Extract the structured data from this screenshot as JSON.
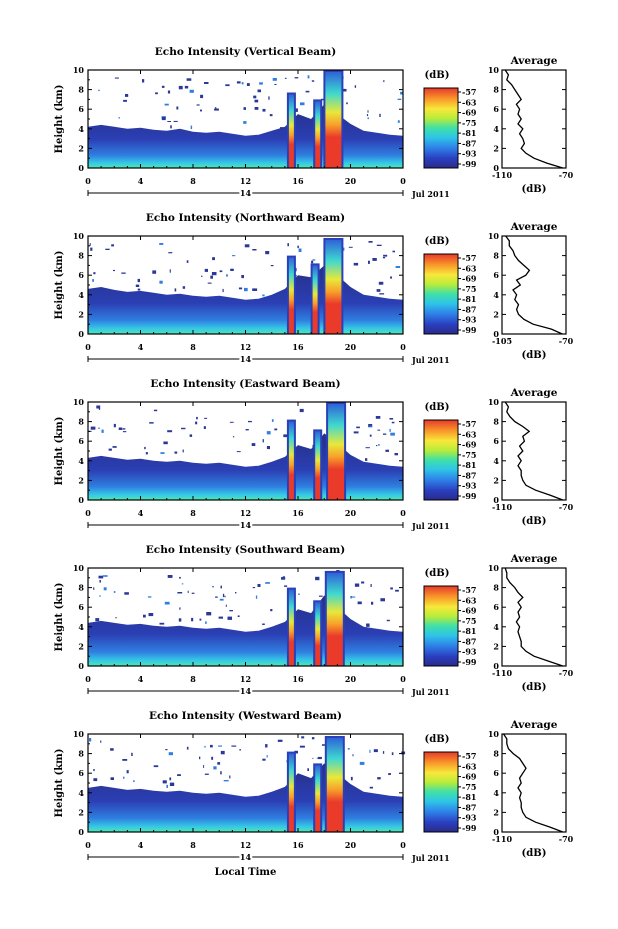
{
  "chart_data": [
    {
      "type": "heatmap",
      "title": "Echo Intensity (Vertical Beam)",
      "ylabel": "Height (km)",
      "xticks": [
        "0",
        "4",
        "8",
        "12",
        "16",
        "20",
        "0"
      ],
      "xlim": [
        0,
        24
      ],
      "ylim": [
        0,
        10
      ],
      "yticks": [
        "0",
        "2",
        "4",
        "6",
        "8",
        "10"
      ],
      "date_day": "14",
      "date_label": "Jul 2011",
      "colorbar": {
        "unit": "(dB)",
        "ticks": [
          "-57",
          "-63",
          "-69",
          "-75",
          "-81",
          "-87",
          "-93",
          "-99"
        ]
      },
      "echo_top_km": [
        [
          0.0,
          4.2
        ],
        [
          1.0,
          4.4
        ],
        [
          2.0,
          4.2
        ],
        [
          3.0,
          4.0
        ],
        [
          4.0,
          4.1
        ],
        [
          5.0,
          3.9
        ],
        [
          6.0,
          3.8
        ],
        [
          7.0,
          4.0
        ],
        [
          8.0,
          3.7
        ],
        [
          9.0,
          3.6
        ],
        [
          10.0,
          3.7
        ],
        [
          11.0,
          3.5
        ],
        [
          12.0,
          3.3
        ],
        [
          13.0,
          3.4
        ],
        [
          14.0,
          3.8
        ],
        [
          15.0,
          4.2
        ],
        [
          16.0,
          5.5
        ],
        [
          17.0,
          5.0
        ],
        [
          18.0,
          6.5
        ],
        [
          19.0,
          5.5
        ],
        [
          20.0,
          4.5
        ],
        [
          21.0,
          3.8
        ],
        [
          22.0,
          3.6
        ],
        [
          23.0,
          3.4
        ],
        [
          24.0,
          3.3
        ]
      ],
      "convective_cells": [
        {
          "time": 15.5,
          "top_km": 7.5
        },
        {
          "time": 17.5,
          "top_km": 6.8
        },
        {
          "time": 18.7,
          "top_km": 9.8
        }
      ],
      "profile": {
        "title": "Average",
        "xlabel": "(dB)",
        "xticks": [
          "-110",
          "-70"
        ],
        "xlim": [
          -110,
          -70
        ],
        "ylim": [
          0,
          10
        ],
        "yticks": [
          "0",
          "2",
          "4",
          "6",
          "8",
          "10"
        ],
        "height_km": [
          0,
          0.5,
          1,
          1.5,
          2,
          2.5,
          3,
          3.5,
          4,
          4.5,
          5,
          5.5,
          6,
          6.5,
          7,
          7.5,
          8,
          8.5,
          9,
          9.5,
          10
        ],
        "value_db": [
          -72,
          -82,
          -90,
          -95,
          -98,
          -96,
          -97,
          -99,
          -97,
          -100,
          -98,
          -100,
          -99,
          -101,
          -98,
          -100,
          -102,
          -104,
          -107,
          -106,
          -108
        ]
      }
    },
    {
      "type": "heatmap",
      "title": "Echo Intensity (Northward Beam)",
      "ylabel": "Height (km)",
      "xticks": [
        "0",
        "4",
        "8",
        "12",
        "16",
        "20",
        "0"
      ],
      "xlim": [
        0,
        24
      ],
      "ylim": [
        0,
        10
      ],
      "yticks": [
        "0",
        "2",
        "4",
        "6",
        "8",
        "10"
      ],
      "date_day": "14",
      "date_label": "Jul 2011",
      "colorbar": {
        "unit": "(dB)",
        "ticks": [
          "-57",
          "-63",
          "-69",
          "-75",
          "-81",
          "-87",
          "-93",
          "-99"
        ]
      },
      "echo_top_km": [
        [
          0.0,
          4.6
        ],
        [
          1.0,
          4.8
        ],
        [
          2.0,
          4.5
        ],
        [
          3.0,
          4.3
        ],
        [
          4.0,
          4.4
        ],
        [
          5.0,
          4.2
        ],
        [
          6.0,
          4.0
        ],
        [
          7.0,
          4.1
        ],
        [
          8.0,
          3.9
        ],
        [
          9.0,
          3.8
        ],
        [
          10.0,
          3.9
        ],
        [
          11.0,
          3.7
        ],
        [
          12.0,
          3.5
        ],
        [
          13.0,
          3.6
        ],
        [
          14.0,
          4.0
        ],
        [
          15.0,
          4.6
        ],
        [
          16.0,
          6.0
        ],
        [
          17.0,
          5.8
        ],
        [
          18.0,
          7.0
        ],
        [
          19.0,
          6.0
        ],
        [
          20.0,
          4.8
        ],
        [
          21.0,
          4.0
        ],
        [
          22.0,
          3.8
        ],
        [
          23.0,
          3.6
        ],
        [
          24.0,
          3.5
        ]
      ],
      "convective_cells": [
        {
          "time": 15.5,
          "top_km": 7.8
        },
        {
          "time": 17.3,
          "top_km": 7.0
        },
        {
          "time": 18.7,
          "top_km": 9.6
        }
      ],
      "profile": {
        "title": "Average",
        "xlabel": "(dB)",
        "xticks": [
          "-105",
          "-70"
        ],
        "xlim": [
          -105,
          -70
        ],
        "ylim": [
          0,
          10
        ],
        "yticks": [
          "0",
          "2",
          "4",
          "6",
          "8",
          "10"
        ],
        "height_km": [
          0,
          0.5,
          1,
          1.5,
          2,
          2.5,
          3,
          3.5,
          4,
          4.5,
          5,
          5.5,
          6,
          6.5,
          7,
          7.5,
          8,
          8.5,
          9,
          9.5,
          10
        ],
        "value_db": [
          -72,
          -78,
          -88,
          -93,
          -96,
          -97,
          -96,
          -98,
          -97,
          -99,
          -95,
          -97,
          -92,
          -90,
          -93,
          -96,
          -98,
          -99,
          -101,
          -101,
          -103
        ]
      }
    },
    {
      "type": "heatmap",
      "title": "Echo Intensity (Eastward Beam)",
      "ylabel": "Height (km)",
      "xticks": [
        "0",
        "4",
        "8",
        "12",
        "16",
        "20",
        "0"
      ],
      "xlim": [
        0,
        24
      ],
      "ylim": [
        0,
        10
      ],
      "yticks": [
        "0",
        "2",
        "4",
        "6",
        "8",
        "10"
      ],
      "date_day": "14",
      "date_label": "Jul 2011",
      "colorbar": {
        "unit": "(dB)",
        "ticks": [
          "-57",
          "-63",
          "-69",
          "-75",
          "-81",
          "-87",
          "-93",
          "-99"
        ]
      },
      "echo_top_km": [
        [
          0.0,
          4.3
        ],
        [
          1.0,
          4.5
        ],
        [
          2.0,
          4.3
        ],
        [
          3.0,
          4.1
        ],
        [
          4.0,
          4.2
        ],
        [
          5.0,
          4.0
        ],
        [
          6.0,
          3.9
        ],
        [
          7.0,
          4.0
        ],
        [
          8.0,
          3.8
        ],
        [
          9.0,
          3.7
        ],
        [
          10.0,
          3.8
        ],
        [
          11.0,
          3.6
        ],
        [
          12.0,
          3.4
        ],
        [
          13.0,
          3.5
        ],
        [
          14.0,
          3.9
        ],
        [
          15.0,
          4.4
        ],
        [
          16.0,
          5.6
        ],
        [
          17.0,
          5.2
        ],
        [
          18.0,
          6.8
        ],
        [
          19.0,
          5.8
        ],
        [
          20.0,
          4.6
        ],
        [
          21.0,
          3.9
        ],
        [
          22.0,
          3.7
        ],
        [
          23.0,
          3.5
        ],
        [
          24.0,
          3.4
        ]
      ],
      "convective_cells": [
        {
          "time": 15.5,
          "top_km": 8.0
        },
        {
          "time": 17.5,
          "top_km": 7.0
        },
        {
          "time": 18.9,
          "top_km": 9.8
        }
      ],
      "profile": {
        "title": "Average",
        "xlabel": "(dB)",
        "xticks": [
          "-110",
          "-70"
        ],
        "xlim": [
          -110,
          -70
        ],
        "ylim": [
          0,
          10
        ],
        "yticks": [
          "0",
          "2",
          "4",
          "6",
          "8",
          "10"
        ],
        "height_km": [
          0,
          0.5,
          1,
          1.5,
          2,
          2.5,
          3,
          3.5,
          4,
          4.5,
          5,
          5.5,
          6,
          6.5,
          7,
          7.5,
          8,
          8.5,
          9,
          9.5,
          10
        ],
        "value_db": [
          -72,
          -80,
          -89,
          -95,
          -97,
          -98,
          -98,
          -100,
          -98,
          -100,
          -97,
          -99,
          -96,
          -97,
          -93,
          -97,
          -102,
          -105,
          -107,
          -106,
          -108
        ]
      }
    },
    {
      "type": "heatmap",
      "title": "Echo Intensity (Southward Beam)",
      "ylabel": "Height (km)",
      "xticks": [
        "0",
        "4",
        "8",
        "12",
        "16",
        "20",
        "0"
      ],
      "xlim": [
        0,
        24
      ],
      "ylim": [
        0,
        10
      ],
      "yticks": [
        "0",
        "2",
        "4",
        "6",
        "8",
        "10"
      ],
      "date_day": "14",
      "date_label": "Jul 2011",
      "colorbar": {
        "unit": "(dB)",
        "ticks": [
          "-57",
          "-63",
          "-69",
          "-75",
          "-81",
          "-87",
          "-93",
          "-99"
        ]
      },
      "echo_top_km": [
        [
          0.0,
          4.4
        ],
        [
          1.0,
          4.6
        ],
        [
          2.0,
          4.4
        ],
        [
          3.0,
          4.2
        ],
        [
          4.0,
          4.3
        ],
        [
          5.0,
          4.1
        ],
        [
          6.0,
          4.0
        ],
        [
          7.0,
          4.1
        ],
        [
          8.0,
          3.9
        ],
        [
          9.0,
          3.8
        ],
        [
          10.0,
          3.9
        ],
        [
          11.0,
          3.7
        ],
        [
          12.0,
          3.5
        ],
        [
          13.0,
          3.6
        ],
        [
          14.0,
          4.0
        ],
        [
          15.0,
          4.5
        ],
        [
          16.0,
          5.8
        ],
        [
          17.0,
          5.4
        ],
        [
          18.0,
          7.2
        ],
        [
          19.0,
          6.0
        ],
        [
          20.0,
          4.8
        ],
        [
          21.0,
          4.0
        ],
        [
          22.0,
          3.8
        ],
        [
          23.0,
          3.6
        ],
        [
          24.0,
          3.5
        ]
      ],
      "convective_cells": [
        {
          "time": 15.5,
          "top_km": 7.8
        },
        {
          "time": 17.5,
          "top_km": 6.5
        },
        {
          "time": 18.8,
          "top_km": 9.5
        }
      ],
      "profile": {
        "title": "Average",
        "xlabel": "(dB)",
        "xticks": [
          "-110",
          "-70"
        ],
        "xlim": [
          -110,
          -70
        ],
        "ylim": [
          0,
          10
        ],
        "yticks": [
          "0",
          "2",
          "4",
          "6",
          "8",
          "10"
        ],
        "height_km": [
          0,
          0.5,
          1,
          1.5,
          2,
          2.5,
          3,
          3.5,
          4,
          4.5,
          5,
          5.5,
          6,
          6.5,
          7,
          7.5,
          8,
          8.5,
          9,
          9.5,
          10
        ],
        "value_db": [
          -72,
          -81,
          -90,
          -95,
          -98,
          -98,
          -99,
          -100,
          -99,
          -101,
          -99,
          -100,
          -98,
          -100,
          -97,
          -100,
          -102,
          -105,
          -107,
          -107,
          -108
        ]
      }
    },
    {
      "type": "heatmap",
      "title": "Echo Intensity (Westward Beam)",
      "ylabel": "Height (km)",
      "xlabel": "Local Time",
      "xticks": [
        "0",
        "4",
        "8",
        "12",
        "16",
        "20",
        "0"
      ],
      "xlim": [
        0,
        24
      ],
      "ylim": [
        0,
        10
      ],
      "yticks": [
        "0",
        "2",
        "4",
        "6",
        "8",
        "10"
      ],
      "date_day": "14",
      "date_label": "Jul 2011",
      "colorbar": {
        "unit": "(dB)",
        "ticks": [
          "-57",
          "-63",
          "-69",
          "-75",
          "-81",
          "-87",
          "-93",
          "-99"
        ]
      },
      "echo_top_km": [
        [
          0.0,
          4.5
        ],
        [
          1.0,
          4.7
        ],
        [
          2.0,
          4.5
        ],
        [
          3.0,
          4.3
        ],
        [
          4.0,
          4.4
        ],
        [
          5.0,
          4.2
        ],
        [
          6.0,
          4.1
        ],
        [
          7.0,
          4.2
        ],
        [
          8.0,
          4.0
        ],
        [
          9.0,
          3.9
        ],
        [
          10.0,
          4.0
        ],
        [
          11.0,
          3.8
        ],
        [
          12.0,
          3.6
        ],
        [
          13.0,
          3.7
        ],
        [
          14.0,
          4.1
        ],
        [
          15.0,
          4.6
        ],
        [
          16.0,
          6.0
        ],
        [
          17.0,
          5.5
        ],
        [
          18.0,
          7.0
        ],
        [
          19.0,
          6.0
        ],
        [
          20.0,
          4.9
        ],
        [
          21.0,
          4.1
        ],
        [
          22.0,
          3.9
        ],
        [
          23.0,
          3.7
        ],
        [
          24.0,
          3.6
        ]
      ],
      "convective_cells": [
        {
          "time": 15.5,
          "top_km": 8.0
        },
        {
          "time": 17.5,
          "top_km": 6.8
        },
        {
          "time": 18.8,
          "top_km": 9.6
        }
      ],
      "profile": {
        "title": "Average",
        "xlabel": "(dB)",
        "xticks": [
          "-110",
          "-70"
        ],
        "xlim": [
          -110,
          -70
        ],
        "ylim": [
          0,
          10
        ],
        "yticks": [
          "0",
          "2",
          "4",
          "6",
          "8",
          "10"
        ],
        "height_km": [
          0,
          0.5,
          1,
          1.5,
          2,
          2.5,
          3,
          3.5,
          4,
          4.5,
          5,
          5.5,
          6,
          6.5,
          7,
          7.5,
          8,
          8.5,
          9,
          9.5,
          10
        ],
        "value_db": [
          -72,
          -80,
          -89,
          -95,
          -97,
          -98,
          -98,
          -99,
          -98,
          -100,
          -98,
          -99,
          -97,
          -95,
          -97,
          -99,
          -103,
          -106,
          -107,
          -107,
          -109
        ]
      }
    }
  ]
}
